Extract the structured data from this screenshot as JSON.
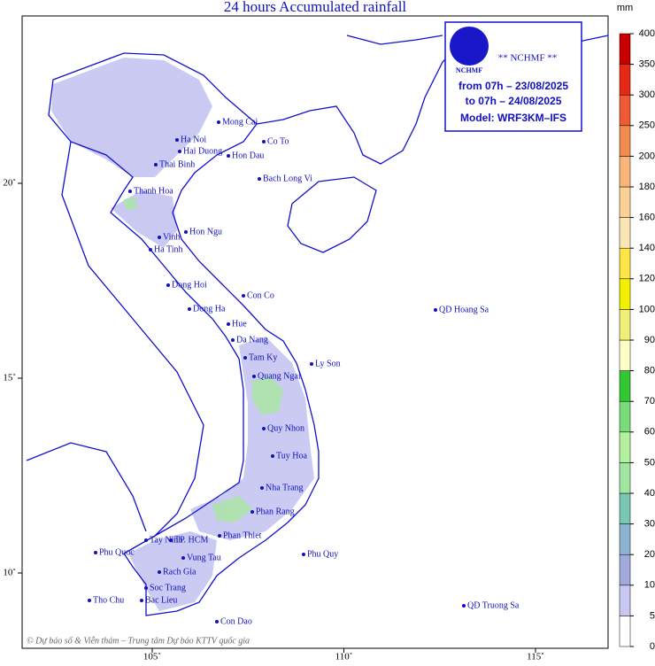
{
  "title": "24 hours Accumulated rainfall",
  "info_box": {
    "logo": "NCHMF",
    "agency": "** NCHMF **",
    "from": "from 07h – 23/08/2025",
    "to": "to 07h – 24/08/2025",
    "model": "Model: WRF3KM–IFS"
  },
  "legend": {
    "unit": "mm",
    "levels": [
      0,
      5,
      10,
      20,
      30,
      40,
      50,
      60,
      70,
      80,
      90,
      100,
      120,
      140,
      160,
      180,
      200,
      250,
      300,
      350,
      400
    ],
    "colors": [
      "#ffffff",
      "#c8c8f0",
      "#a0aadc",
      "#8cb4d2",
      "#78c8b4",
      "#a0e6a0",
      "#b4f0a0",
      "#78dc78",
      "#32c832",
      "#ffffc8",
      "#f0f078",
      "#f0f000",
      "#ffe646",
      "#fae6b4",
      "#fad296",
      "#fab478",
      "#f08c50",
      "#f05a32",
      "#e62814",
      "#c80000"
    ]
  },
  "lon_ticks": [
    {
      "value": 105,
      "label": "105˚"
    },
    {
      "value": 110,
      "label": "110˚"
    },
    {
      "value": 115,
      "label": "115˚"
    }
  ],
  "lat_ticks": [
    {
      "value": 20,
      "label": "20˚"
    },
    {
      "value": 15,
      "label": "15˚"
    },
    {
      "value": 10,
      "label": "10˚"
    }
  ],
  "places": [
    "Mong Cai",
    "Ha Noi",
    "Hai Duong",
    "Co To",
    "Hon Dau",
    "Thai Binh",
    "Bach Long Vi",
    "Thanh Hoa",
    "Hon Ngu",
    "Vinh",
    "Ha Tinh",
    "Dong Hoi",
    "Con Co",
    "Dong Ha",
    "Hue",
    "Da Nang",
    "Tam Ky",
    "Ly Son",
    "Quang Ngai",
    "Quy Nhon",
    "Tuy Hoa",
    "Nha Trang",
    "Phan Rang",
    "Phan Thiet",
    "Phu Quy",
    "Tay Ninh",
    "TP. HCM",
    "Vung Tau",
    "Phu Quoc",
    "Rach Gia",
    "Soc Trang",
    "Bac Lieu",
    "Tho Chu",
    "Con Dao",
    "QD Hoang Sa",
    "QD Truong Sa"
  ],
  "footer": "© Dự báo số & Viễn thám – Trung tâm Dự báo KTTV quốc gia"
}
